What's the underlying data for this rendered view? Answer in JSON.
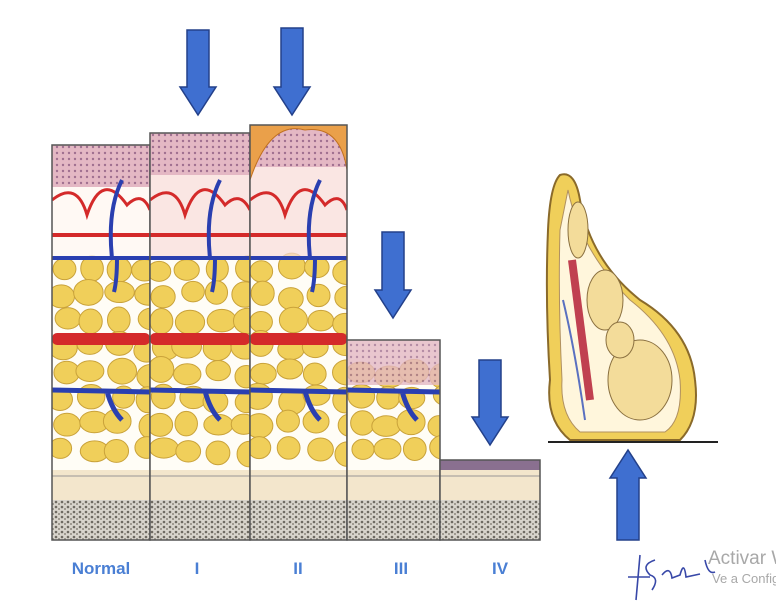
{
  "stages": [
    {
      "label": "Normal"
    },
    {
      "label": "I"
    },
    {
      "label": "II"
    },
    {
      "label": "III"
    },
    {
      "label": "IV"
    }
  ],
  "watermark": {
    "line1": "Activar W",
    "line2": "Ve a Config"
  },
  "colors": {
    "label": "#4a7fd4",
    "arrow": "#3f6fd0",
    "artery": "#d42a2a",
    "vein": "#2a3fb0",
    "fat": "#f0cf5a",
    "epidermis": "#d9a9b8"
  },
  "icons": {
    "pressure_arrow": "arrow-down-icon",
    "counter_arrow": "arrow-up-icon",
    "signature": "signature"
  }
}
